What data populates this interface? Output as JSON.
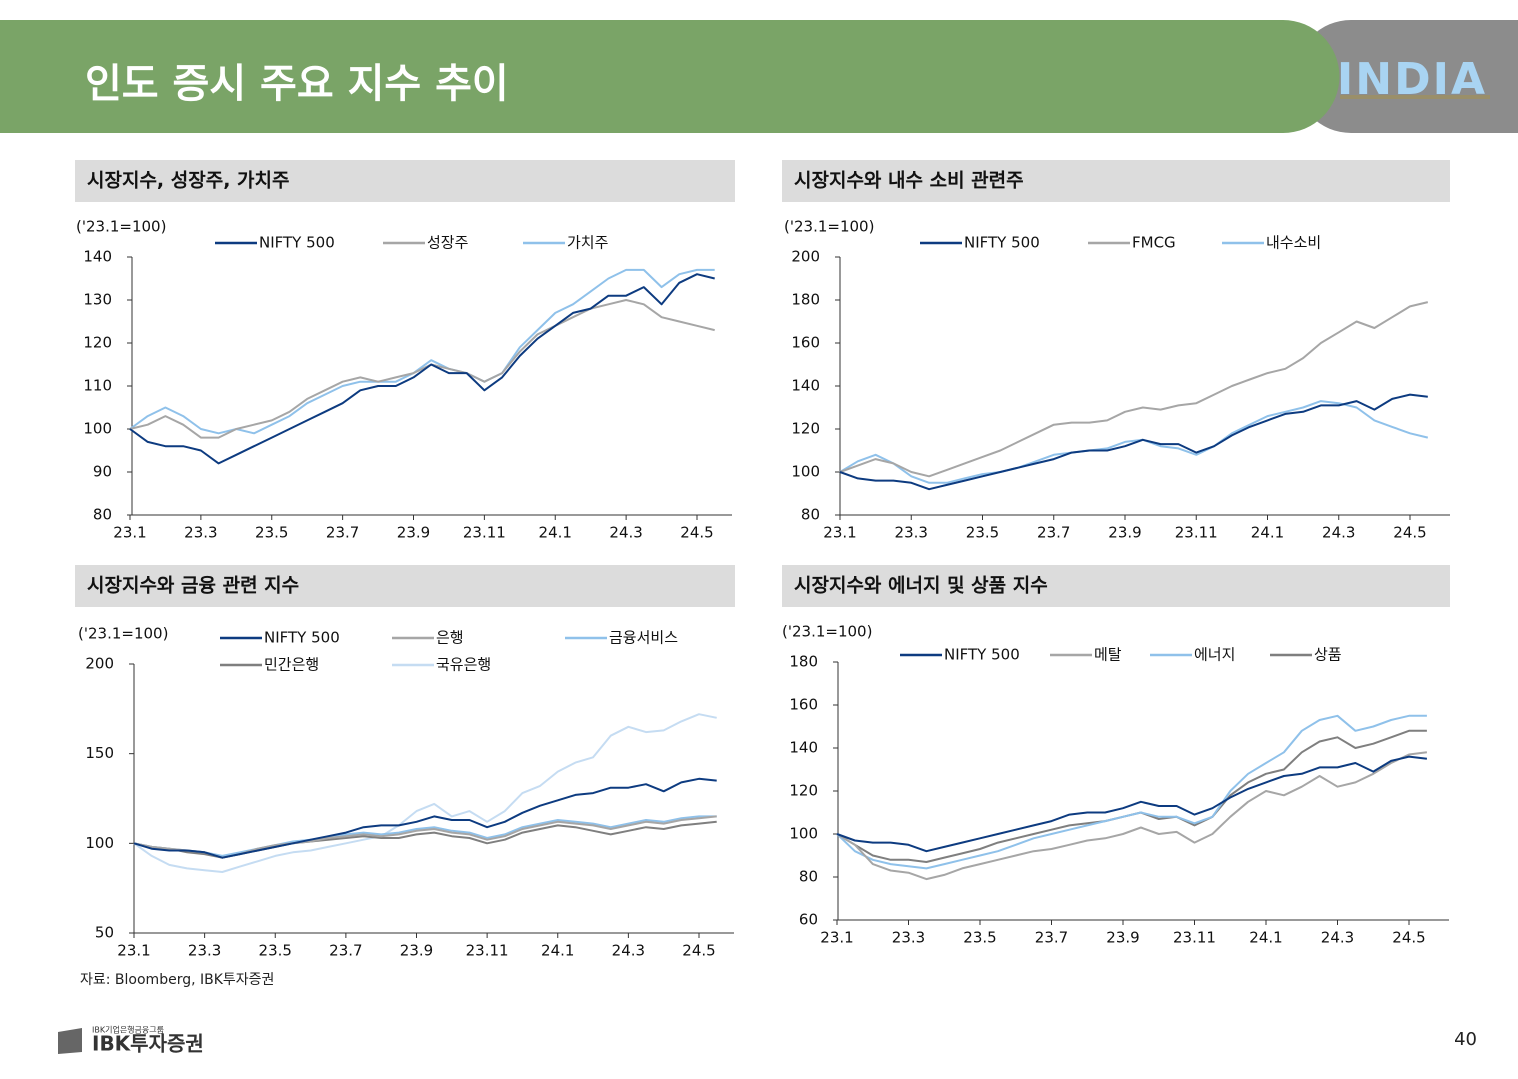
{
  "header": {
    "title": "인도 증시 주요 지수 추이",
    "logo": "INDIA"
  },
  "source": "자료: Bloomberg, IBK투자증권",
  "footer": {
    "group": "IBK기업은행금융그룹",
    "brand": "IBK투자증권",
    "page_number": 40
  },
  "chart_data": [
    {
      "type": "line",
      "title": "시장지수, 성장주, 가치주",
      "y_unit": "('23.1=100)",
      "categories": [
        "23.1",
        null,
        null,
        null,
        "23.3",
        null,
        null,
        null,
        "23.5",
        null,
        null,
        null,
        "23.7",
        null,
        null,
        null,
        "23.9",
        null,
        null,
        null,
        "23.11",
        null,
        null,
        null,
        "24.1",
        null,
        null,
        null,
        "24.3",
        null,
        null,
        null,
        "24.5",
        null
      ],
      "ylim": [
        80,
        140
      ],
      "yticks": [
        80,
        90,
        100,
        110,
        120,
        130,
        140
      ],
      "series": [
        {
          "name": "NIFTY 500",
          "color": "#0d3b80",
          "values": [
            100,
            97,
            96,
            96,
            95,
            92,
            94,
            96,
            98,
            100,
            102,
            104,
            106,
            109,
            110,
            110,
            112,
            115,
            113,
            113,
            109,
            112,
            117,
            121,
            124,
            127,
            128,
            131,
            131,
            133,
            129,
            134,
            136,
            135
          ]
        },
        {
          "name": "성장주",
          "color": "#a6a6a6",
          "values": [
            100,
            101,
            103,
            101,
            98,
            98,
            100,
            101,
            102,
            104,
            107,
            109,
            111,
            112,
            111,
            112,
            113,
            115,
            114,
            113,
            111,
            113,
            118,
            122,
            124,
            126,
            128,
            129,
            130,
            129,
            126,
            125,
            124,
            123
          ]
        },
        {
          "name": "가치주",
          "color": "#8fc1ea",
          "values": [
            100,
            103,
            105,
            103,
            100,
            99,
            100,
            99,
            101,
            103,
            106,
            108,
            110,
            111,
            111,
            111,
            113,
            116,
            114,
            113,
            111,
            113,
            119,
            123,
            127,
            129,
            132,
            135,
            137,
            137,
            133,
            136,
            137,
            137
          ]
        }
      ]
    },
    {
      "type": "line",
      "title": "시장지수와 내수 소비 관련주",
      "y_unit": "('23.1=100)",
      "categories": [
        "23.1",
        null,
        null,
        null,
        "23.3",
        null,
        null,
        null,
        "23.5",
        null,
        null,
        null,
        "23.7",
        null,
        null,
        null,
        "23.9",
        null,
        null,
        null,
        "23.11",
        null,
        null,
        null,
        "24.1",
        null,
        null,
        null,
        "24.3",
        null,
        null,
        null,
        "24.5",
        null
      ],
      "ylim": [
        80,
        200
      ],
      "yticks": [
        80,
        100,
        120,
        140,
        160,
        180,
        200
      ],
      "series": [
        {
          "name": "NIFTY 500",
          "color": "#0d3b80",
          "values": [
            100,
            97,
            96,
            96,
            95,
            92,
            94,
            96,
            98,
            100,
            102,
            104,
            106,
            109,
            110,
            110,
            112,
            115,
            113,
            113,
            109,
            112,
            117,
            121,
            124,
            127,
            128,
            131,
            131,
            133,
            129,
            134,
            136,
            135
          ]
        },
        {
          "name": "FMCG",
          "color": "#a6a6a6",
          "values": [
            100,
            103,
            106,
            104,
            100,
            98,
            101,
            104,
            107,
            110,
            114,
            118,
            122,
            123,
            123,
            124,
            128,
            130,
            129,
            131,
            132,
            136,
            140,
            143,
            146,
            148,
            153,
            160,
            165,
            170,
            167,
            172,
            177,
            179
          ]
        },
        {
          "name": "내수소비",
          "color": "#8fc1ea",
          "values": [
            100,
            105,
            108,
            104,
            98,
            95,
            95,
            97,
            99,
            100,
            102,
            105,
            108,
            109,
            110,
            111,
            114,
            115,
            112,
            111,
            108,
            112,
            118,
            122,
            126,
            128,
            130,
            133,
            132,
            130,
            124,
            121,
            118,
            116
          ]
        }
      ]
    },
    {
      "type": "line",
      "title": "시장지수와 금융 관련 지수",
      "y_unit": "('23.1=100)",
      "categories": [
        "23.1",
        null,
        null,
        null,
        "23.3",
        null,
        null,
        null,
        "23.5",
        null,
        null,
        null,
        "23.7",
        null,
        null,
        null,
        "23.9",
        null,
        null,
        null,
        "23.11",
        null,
        null,
        null,
        "24.1",
        null,
        null,
        null,
        "24.3",
        null,
        null,
        null,
        "24.5",
        null
      ],
      "ylim": [
        50,
        200
      ],
      "yticks": [
        50,
        100,
        150,
        200
      ],
      "series": [
        {
          "name": "NIFTY 500",
          "color": "#0d3b80",
          "values": [
            100,
            97,
            96,
            96,
            95,
            92,
            94,
            96,
            98,
            100,
            102,
            104,
            106,
            109,
            110,
            110,
            112,
            115,
            113,
            113,
            109,
            112,
            117,
            121,
            124,
            127,
            128,
            131,
            131,
            133,
            129,
            134,
            136,
            135
          ]
        },
        {
          "name": "은행",
          "color": "#a6a6a6",
          "values": [
            100,
            98,
            97,
            96,
            95,
            92,
            94,
            97,
            99,
            100,
            101,
            103,
            104,
            105,
            104,
            105,
            107,
            108,
            106,
            105,
            102,
            104,
            108,
            110,
            112,
            111,
            110,
            108,
            110,
            112,
            111,
            113,
            114,
            115
          ]
        },
        {
          "name": "금융서비스",
          "color": "#8fc1ea",
          "values": [
            100,
            98,
            97,
            96,
            95,
            93,
            95,
            97,
            99,
            101,
            102,
            103,
            105,
            106,
            105,
            106,
            108,
            109,
            107,
            106,
            103,
            105,
            109,
            111,
            113,
            112,
            111,
            109,
            111,
            113,
            112,
            114,
            115,
            115
          ]
        },
        {
          "name": "민간은행",
          "color": "#7f7f7f",
          "values": [
            100,
            98,
            97,
            95,
            94,
            92,
            94,
            96,
            98,
            100,
            101,
            102,
            103,
            104,
            103,
            103,
            105,
            106,
            104,
            103,
            100,
            102,
            106,
            108,
            110,
            109,
            107,
            105,
            107,
            109,
            108,
            110,
            111,
            112
          ]
        },
        {
          "name": "국유은행",
          "color": "#c5dcf2",
          "values": [
            100,
            93,
            88,
            86,
            85,
            84,
            87,
            90,
            93,
            95,
            96,
            98,
            100,
            102,
            104,
            110,
            118,
            122,
            115,
            118,
            112,
            118,
            128,
            132,
            140,
            145,
            148,
            160,
            165,
            162,
            163,
            168,
            172,
            170
          ]
        }
      ]
    },
    {
      "type": "line",
      "title": "시장지수와 에너지 및 상품 지수",
      "y_unit": "('23.1=100)",
      "categories": [
        "23.1",
        null,
        null,
        null,
        "23.3",
        null,
        null,
        null,
        "23.5",
        null,
        null,
        null,
        "23.7",
        null,
        null,
        null,
        "23.9",
        null,
        null,
        null,
        "23.11",
        null,
        null,
        null,
        "24.1",
        null,
        null,
        null,
        "24.3",
        null,
        null,
        null,
        "24.5",
        null
      ],
      "ylim": [
        60,
        180
      ],
      "yticks": [
        60,
        80,
        100,
        120,
        140,
        160,
        180
      ],
      "series": [
        {
          "name": "NIFTY 500",
          "color": "#0d3b80",
          "values": [
            100,
            97,
            96,
            96,
            95,
            92,
            94,
            96,
            98,
            100,
            102,
            104,
            106,
            109,
            110,
            110,
            112,
            115,
            113,
            113,
            109,
            112,
            117,
            121,
            124,
            127,
            128,
            131,
            131,
            133,
            129,
            134,
            136,
            135
          ]
        },
        {
          "name": "메탈",
          "color": "#a6a6a6",
          "values": [
            100,
            95,
            86,
            83,
            82,
            79,
            81,
            84,
            86,
            88,
            90,
            92,
            93,
            95,
            97,
            98,
            100,
            103,
            100,
            101,
            96,
            100,
            108,
            115,
            120,
            118,
            122,
            127,
            122,
            124,
            128,
            133,
            137,
            138
          ]
        },
        {
          "name": "에너지",
          "color": "#8fc1ea",
          "values": [
            100,
            92,
            88,
            86,
            85,
            84,
            86,
            88,
            90,
            92,
            95,
            98,
            100,
            102,
            104,
            106,
            108,
            110,
            108,
            108,
            105,
            108,
            120,
            128,
            133,
            138,
            148,
            153,
            155,
            148,
            150,
            153,
            155,
            155
          ]
        },
        {
          "name": "상품",
          "color": "#7f7f7f",
          "values": [
            100,
            95,
            90,
            88,
            88,
            87,
            89,
            91,
            93,
            96,
            98,
            100,
            102,
            104,
            105,
            106,
            108,
            110,
            107,
            108,
            104,
            108,
            118,
            124,
            128,
            130,
            138,
            143,
            145,
            140,
            142,
            145,
            148,
            148
          ]
        }
      ]
    }
  ]
}
